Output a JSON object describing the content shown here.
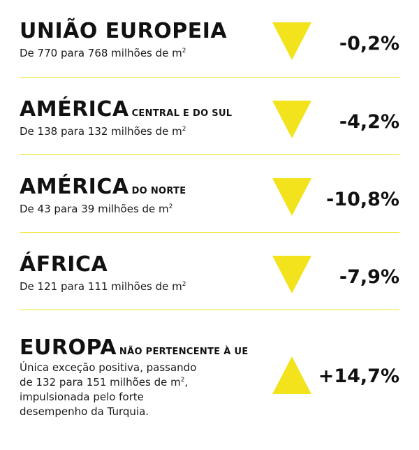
{
  "colors": {
    "accent": "#f2e31c",
    "text": "#111111"
  },
  "regions": [
    {
      "title": "UNIÃO EUROPEIA",
      "subtitle": "",
      "desc_lines": [
        "De 770 para 768 milhões de m"
      ],
      "sup": "2",
      "change": "-0,2%",
      "direction": "down"
    },
    {
      "title": "AMÉRICA",
      "subtitle": "CENTRAL E DO SUL",
      "desc_lines": [
        "De 138 para 132 milhões de m"
      ],
      "sup": "2",
      "change": "-4,2%",
      "direction": "down"
    },
    {
      "title": "AMÉRICA",
      "subtitle": "DO NORTE",
      "desc_lines": [
        "De 43 para 39 milhões de m"
      ],
      "sup": "2",
      "change": "-10,8%",
      "direction": "down"
    },
    {
      "title": "ÁFRICA",
      "subtitle": "",
      "desc_lines": [
        "De 121 para 111 milhões de m"
      ],
      "sup": "2",
      "change": "-7,9%",
      "direction": "down"
    },
    {
      "title": "EUROPA",
      "subtitle": "NÃO PERTENCENTE À UE",
      "desc_lines": [
        "Única exceção positiva, passando",
        "de 132 para 151 milhões de m",
        "impulsionada pelo forte",
        "desempenho da Turquia."
      ],
      "sup": "2",
      "sup_suffix": ",",
      "change": "+14,7%",
      "direction": "up"
    }
  ]
}
